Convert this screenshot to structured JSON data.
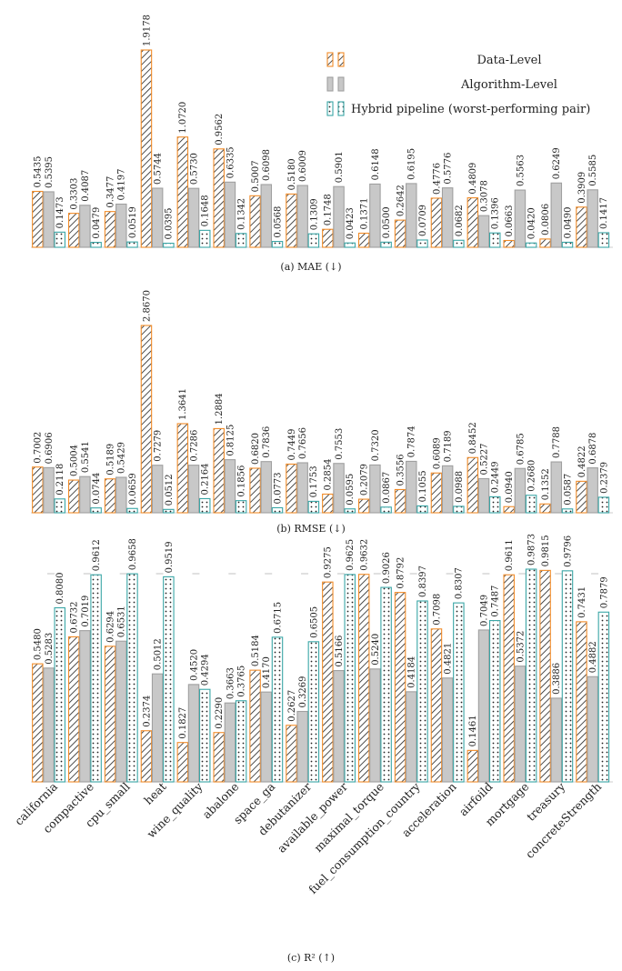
{
  "legend": {
    "items": [
      {
        "label": "Data-Level",
        "key": "data"
      },
      {
        "label": "Algorithm-Level",
        "key": "algo"
      },
      {
        "label": "Hybrid pipeline (worst-performing pair)",
        "key": "hybrid"
      }
    ]
  },
  "colors": {
    "data": "#f28c28",
    "algo": "#c8c8c8",
    "algo_border": "#a0a0a0",
    "hybrid": "#3aa6a6",
    "ink": "#222222"
  },
  "chart_data": [
    {
      "type": "bar",
      "caption": "(a) MAE (↓)",
      "categories": [
        "california",
        "compactive",
        "cpu_small",
        "heat",
        "wine_quality",
        "abalone",
        "space_ga",
        "debutanizer",
        "available_power",
        "maximal_torque",
        "fuel_consumption_country",
        "acceleration",
        "airfoild",
        "mortgage",
        "treasury",
        "concreteStrength"
      ],
      "series": [
        {
          "name": "Data-Level",
          "values": [
            0.5435,
            0.3303,
            0.3477,
            1.9178,
            1.072,
            0.9562,
            0.5007,
            0.518,
            0.1748,
            0.1371,
            0.2642,
            0.4776,
            0.4809,
            0.0663,
            0.0806,
            0.3909
          ]
        },
        {
          "name": "Algorithm-Level",
          "values": [
            0.5395,
            0.4087,
            0.4197,
            0.5744,
            0.573,
            0.6335,
            0.6098,
            0.6009,
            0.5901,
            0.6148,
            0.6195,
            0.5776,
            0.3078,
            0.5563,
            0.6249,
            0.5585
          ]
        },
        {
          "name": "Hybrid pipeline (worst-performing pair)",
          "values": [
            0.1473,
            0.0479,
            0.0519,
            0.0395,
            0.1648,
            0.1342,
            0.0568,
            0.1309,
            0.0423,
            0.05,
            0.0709,
            0.0682,
            0.1396,
            0.042,
            0.049,
            0.1417
          ]
        }
      ]
    },
    {
      "type": "bar",
      "caption": "(b) RMSE (↓)",
      "categories": [
        "california",
        "compactive",
        "cpu_small",
        "heat",
        "wine_quality",
        "abalone",
        "space_ga",
        "debutanizer",
        "available_power",
        "maximal_torque",
        "fuel_consumption_country",
        "acceleration",
        "airfoild",
        "mortgage",
        "treasury",
        "concreteStrength"
      ],
      "series": [
        {
          "name": "Data-Level",
          "values": [
            0.7002,
            0.5004,
            0.5189,
            2.867,
            1.3641,
            1.2884,
            0.682,
            0.7449,
            0.2854,
            0.2079,
            0.3556,
            0.6089,
            0.8452,
            0.094,
            0.1352,
            0.4822
          ]
        },
        {
          "name": "Algorithm-Level",
          "values": [
            0.6906,
            0.5541,
            0.5429,
            0.7279,
            0.7286,
            0.8125,
            0.7836,
            0.7656,
            0.7553,
            0.732,
            0.7874,
            0.7189,
            0.5227,
            0.6785,
            0.7788,
            0.6878
          ]
        },
        {
          "name": "Hybrid pipeline (worst-performing pair)",
          "values": [
            0.2118,
            0.0744,
            0.0659,
            0.0512,
            0.2164,
            0.1856,
            0.0773,
            0.1753,
            0.0595,
            0.0867,
            0.1055,
            0.0988,
            0.2449,
            0.268,
            0.0587,
            0.2379
          ]
        }
      ]
    },
    {
      "type": "bar",
      "caption": "(c) R² (↑)",
      "categories": [
        "california",
        "compactive",
        "cpu_small",
        "heat",
        "wine_quality",
        "abalone",
        "space_ga",
        "debutanizer",
        "available_power",
        "maximal_torque",
        "fuel_consumption_country",
        "acceleration",
        "airfoild",
        "mortgage",
        "treasury",
        "concreteStrength"
      ],
      "series": [
        {
          "name": "Data-Level",
          "values": [
            0.548,
            0.6732,
            0.6294,
            0.2374,
            0.1827,
            0.229,
            0.5184,
            0.2627,
            0.9275,
            0.9632,
            0.8792,
            0.7098,
            0.1461,
            0.9611,
            0.9815,
            0.7431
          ]
        },
        {
          "name": "Algorithm-Level",
          "values": [
            0.5283,
            0.7019,
            0.6531,
            0.5012,
            0.452,
            0.3663,
            0.417,
            0.3269,
            0.5166,
            0.524,
            0.4184,
            0.4821,
            0.7049,
            0.5372,
            0.3886,
            0.4882
          ]
        },
        {
          "name": "Hybrid pipeline (worst-performing pair)",
          "values": [
            0.808,
            0.9612,
            0.9658,
            0.9519,
            0.4294,
            0.3765,
            0.6715,
            0.6505,
            0.9625,
            0.9026,
            0.8397,
            0.8307,
            0.7487,
            0.9873,
            0.9796,
            0.7879
          ]
        }
      ]
    }
  ]
}
